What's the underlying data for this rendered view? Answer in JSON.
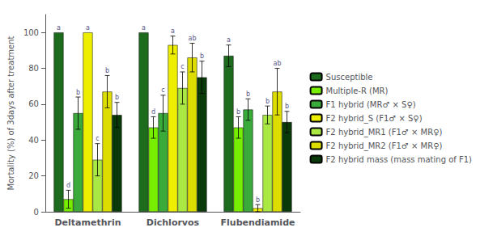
{
  "chart_data": {
    "type": "bar",
    "categories": [
      "Deltamethrin",
      "Dichlorvos",
      "Flubendiamide"
    ],
    "ylabel": "Mortality (%) of 3days after treatment",
    "ylim": [
      0,
      110
    ],
    "yticks": [
      0,
      20,
      40,
      60,
      80,
      100
    ],
    "grid": false,
    "legend": "right",
    "series": [
      {
        "name": "Susceptible",
        "color": "#1d6b1d",
        "values": [
          100,
          100,
          87
        ],
        "errors": [
          0,
          0,
          6
        ],
        "letters": [
          "a",
          "a",
          "a"
        ]
      },
      {
        "name": "Multiple-R (MR)",
        "color": "#77ee00",
        "values": [
          7,
          47,
          47
        ],
        "errors": [
          5,
          6,
          6
        ],
        "letters": [
          "d",
          "d",
          "b"
        ]
      },
      {
        "name": "F1 hybrid (MR♂ × S♀)",
        "color": "#3aaa3a",
        "values": [
          55,
          55,
          57
        ],
        "errors": [
          9,
          10,
          6
        ],
        "letters": [
          "b",
          "c",
          "b"
        ]
      },
      {
        "name": "F2 hybrid_S (F1♂ × S♀)",
        "color": "#eeee00",
        "values": [
          100,
          93,
          2
        ],
        "errors": [
          0,
          5,
          2
        ],
        "letters": [
          "a",
          "a",
          "b"
        ]
      },
      {
        "name": "F2 hybrid_MR1 (F1♂ × MR♀)",
        "color": "#aae844",
        "values": [
          29,
          69,
          54
        ],
        "errors": [
          9,
          9,
          5
        ],
        "letters": [
          "c",
          "c",
          "b"
        ]
      },
      {
        "name": "F2 hybrid_MR2 (F1♂ × MR♀)",
        "color": "#dddd00",
        "values": [
          67,
          86,
          67
        ],
        "errors": [
          9,
          8,
          13
        ],
        "letters": [
          "b",
          "ab",
          "ab"
        ]
      },
      {
        "name": "F2 hybrid mass (mass mating of F1)",
        "color": "#0a3a0a",
        "values": [
          54,
          75,
          50
        ],
        "errors": [
          7,
          9,
          6
        ],
        "letters": [
          "b",
          "b",
          "b"
        ]
      }
    ]
  }
}
